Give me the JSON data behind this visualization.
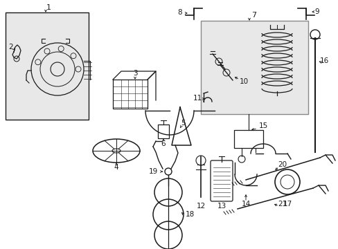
{
  "bg": "#ffffff",
  "lc": "#1a1a1a",
  "box_fill": "#e8e8e8",
  "fig_w": 4.89,
  "fig_h": 3.6,
  "dpi": 100
}
